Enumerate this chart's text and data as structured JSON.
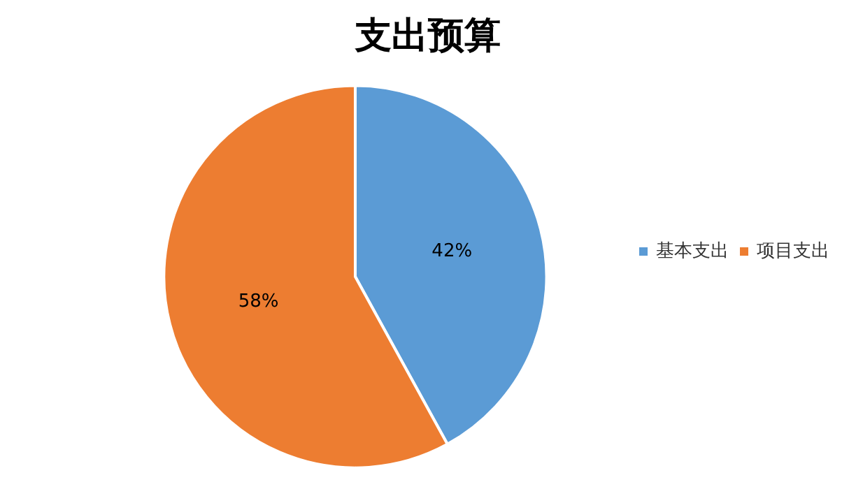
{
  "chart_data": {
    "type": "pie",
    "title": "支出预算",
    "categories": [
      "基本支出",
      "项目支出"
    ],
    "values": [
      42,
      58
    ],
    "colors": [
      "#5b9bd5",
      "#ed7d31"
    ],
    "value_labels": [
      "42%",
      "58%"
    ],
    "legend": "right"
  }
}
